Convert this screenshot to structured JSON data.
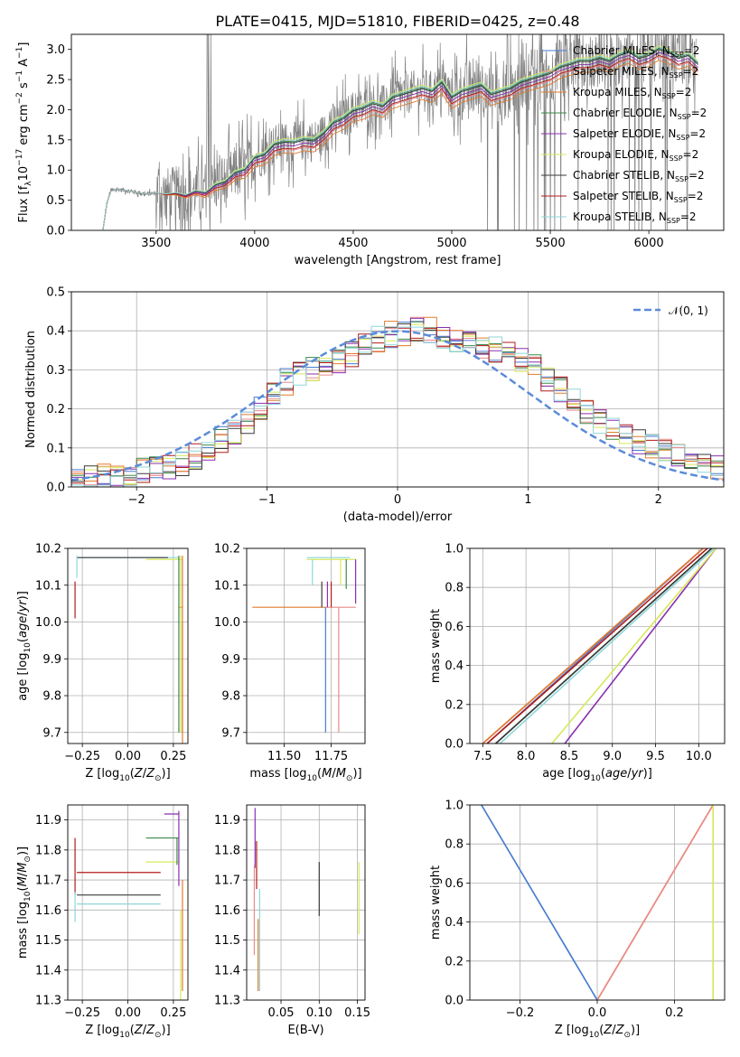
{
  "figure_title": "PLATE=0415, MJD=51810, FIBERID=0425, z=0.48",
  "models": [
    {
      "name": "Chabrier MILES, N$_{SSP}$=2",
      "label_main": "Chabrier MILES, N",
      "label_sub": "SSP",
      "label_tail": "=2",
      "color": "#4a7bd0"
    },
    {
      "name": "Salpeter MILES, N$_{SSP}$=2",
      "label_main": "Salpeter MILES, N",
      "label_sub": "SSP",
      "label_tail": "=2",
      "color": "#e98a8a"
    },
    {
      "name": "Kroupa MILES, N$_{SSP}$=2",
      "label_main": "Kroupa MILES, N",
      "label_sub": "SSP",
      "label_tail": "=2",
      "color": "#e07b2e"
    },
    {
      "name": "Chabrier ELODIE, N$_{SSP}$=2",
      "label_main": "Chabrier ELODIE, N",
      "label_sub": "SSP",
      "label_tail": "=2",
      "color": "#3c8a4a"
    },
    {
      "name": "Salpeter ELODIE, N$_{SSP}$=2",
      "label_main": "Salpeter ELODIE, N",
      "label_sub": "SSP",
      "label_tail": "=2",
      "color": "#8a2fb0"
    },
    {
      "name": "Kroupa ELODIE, N$_{SSP}$=2",
      "label_main": "Kroupa ELODIE, N",
      "label_sub": "SSP",
      "label_tail": "=2",
      "color": "#d7e85a"
    },
    {
      "name": "Chabrier STELIB, N$_{SSP}$=2",
      "label_main": "Chabrier STELIB, N",
      "label_sub": "SSP",
      "label_tail": "=2",
      "color": "#3a3a3a"
    },
    {
      "name": "Salpeter STELIB, N$_{SSP}$=2",
      "label_main": "Salpeter STELIB, N",
      "label_sub": "SSP",
      "label_tail": "=2",
      "color": "#b01c1c"
    },
    {
      "name": "Kroupa STELIB, N$_{SSP}$=2",
      "label_main": "Kroupa STELIB, N",
      "label_sub": "SSP",
      "label_tail": "=2",
      "color": "#8fd6da"
    }
  ],
  "chart_data": [
    {
      "id": "spectrum",
      "type": "line",
      "title": "PLATE=0415, MJD=51810, FIBERID=0425, z=0.48",
      "xlabel": "wavelength [Angstrom, rest frame]",
      "ylabel": "Flux [f_λ 10^-17 erg cm^-2 s^-1 A^-1]",
      "xlim": [
        3070,
        6380
      ],
      "ylim": [
        0,
        3.25
      ],
      "xticks": [
        3500,
        4000,
        4500,
        5000,
        5500,
        6000
      ],
      "yticks": [
        0.0,
        0.5,
        1.0,
        1.5,
        2.0,
        2.5,
        3.0
      ],
      "grid": false,
      "legend": "top-right",
      "data_series": {
        "name": "data",
        "color": "#808080"
      },
      "model_continuum": {
        "x": [
          3200,
          3230,
          3250,
          3270,
          3300,
          3350,
          3400,
          3450,
          3500,
          3550,
          3600,
          3650,
          3700,
          3750,
          3800,
          3850,
          3900,
          3950,
          4000,
          4050,
          4100,
          4150,
          4200,
          4250,
          4300,
          4350,
          4400,
          4450,
          4500,
          4550,
          4600,
          4650,
          4700,
          4750,
          4800,
          4850,
          4900,
          4950,
          5000,
          5050,
          5100,
          5150,
          5200,
          5250,
          5300,
          5350,
          5400,
          5450,
          5500,
          5550,
          5600,
          5650,
          5700,
          5750,
          5800,
          5850,
          5900,
          5950,
          6000,
          6050,
          6100,
          6150,
          6200,
          6250
        ],
        "y": [
          0.0,
          0.0,
          0.45,
          0.65,
          0.68,
          0.66,
          0.63,
          0.6,
          0.62,
          0.6,
          0.62,
          0.58,
          0.65,
          0.62,
          0.75,
          0.8,
          0.95,
          1.0,
          1.2,
          1.25,
          1.42,
          1.46,
          1.45,
          1.5,
          1.48,
          1.6,
          1.78,
          1.85,
          1.98,
          2.02,
          2.1,
          2.05,
          2.2,
          2.25,
          2.3,
          2.35,
          2.3,
          2.45,
          2.2,
          2.3,
          2.35,
          2.4,
          2.25,
          2.3,
          2.35,
          2.45,
          2.5,
          2.55,
          2.6,
          2.7,
          2.75,
          2.8,
          2.8,
          2.85,
          2.8,
          2.9,
          2.95,
          2.85,
          2.9,
          3.0,
          2.95,
          2.85,
          2.9,
          2.75
        ]
      }
    },
    {
      "id": "residuals",
      "type": "line",
      "xlabel": "(data-model)/error",
      "ylabel": "Normed distribution",
      "xlim": [
        -2.5,
        2.5
      ],
      "ylim": [
        0.0,
        0.5
      ],
      "xticks": [
        -2,
        -1,
        0,
        1,
        2
      ],
      "yticks": [
        0.0,
        0.1,
        0.2,
        0.3,
        0.4,
        0.5
      ],
      "grid": true,
      "legend": "top-right",
      "gaussian_label": "𝒩(0, 1)",
      "gaussian": {
        "mean": 0,
        "sigma": 1,
        "color": "#5b8bd9"
      },
      "histogram_bin_edges": [
        -2.5,
        -2.4,
        -2.3,
        -2.2,
        -2.1,
        -2.0,
        -1.9,
        -1.8,
        -1.7,
        -1.6,
        -1.5,
        -1.4,
        -1.3,
        -1.2,
        -1.1,
        -1.0,
        -0.9,
        -0.8,
        -0.7,
        -0.6,
        -0.5,
        -0.4,
        -0.3,
        -0.2,
        -0.1,
        0.0,
        0.1,
        0.2,
        0.3,
        0.4,
        0.5,
        0.6,
        0.7,
        0.8,
        0.9,
        1.0,
        1.1,
        1.2,
        1.3,
        1.4,
        1.5,
        1.6,
        1.7,
        1.8,
        1.9,
        2.0,
        2.1,
        2.2,
        2.3,
        2.4,
        2.5
      ],
      "histogram_base": [
        0.02,
        0.02,
        0.03,
        0.03,
        0.03,
        0.04,
        0.05,
        0.05,
        0.06,
        0.08,
        0.1,
        0.12,
        0.14,
        0.17,
        0.2,
        0.24,
        0.27,
        0.29,
        0.3,
        0.31,
        0.32,
        0.34,
        0.36,
        0.38,
        0.39,
        0.39,
        0.4,
        0.4,
        0.39,
        0.38,
        0.37,
        0.36,
        0.35,
        0.35,
        0.33,
        0.31,
        0.28,
        0.25,
        0.22,
        0.19,
        0.17,
        0.15,
        0.13,
        0.12,
        0.1,
        0.09,
        0.08,
        0.07,
        0.06,
        0.05
      ]
    },
    {
      "id": "age_vs_Z",
      "type": "line",
      "xlabel": "Z [log10(Z/Z⊙)]",
      "ylabel": "age [log10(age/yr)]",
      "xlim": [
        -0.33,
        0.33
      ],
      "ylim": [
        9.67,
        10.2
      ],
      "xticks": [
        -0.25,
        0.0,
        0.25
      ],
      "yticks": [
        9.7,
        9.8,
        9.9,
        10.0,
        10.1,
        10.2
      ],
      "grid": true,
      "segments": [
        {
          "model": 8,
          "x0": -0.28,
          "x1": 0.28,
          "y": 10.175,
          "err": 0.01
        },
        {
          "model": 6,
          "x0": -0.28,
          "x1": 0.22,
          "y": 10.175,
          "err": 0.01
        },
        {
          "model": 5,
          "x0": 0.1,
          "x1": 0.3,
          "y": 10.17,
          "err": 0.01
        },
        {
          "model": 2,
          "x0": 0.28,
          "x1": 0.3,
          "y": 10.04,
          "err": 0.02
        },
        {
          "model": 7,
          "x0": -0.29,
          "x1": -0.29,
          "y": 10.06,
          "err": 0.05
        },
        {
          "model": 2,
          "x0": 0.3,
          "x1": 0.3,
          "y": 9.7,
          "err": 0.3
        }
      ]
    },
    {
      "id": "age_vs_mass",
      "type": "line",
      "xlabel": "mass [log10(M/M⊙)]",
      "ylabel": "",
      "xlim": [
        11.3,
        11.93
      ],
      "ylim": [
        9.67,
        10.2
      ],
      "xticks": [
        11.5,
        11.75
      ],
      "yticks": [
        9.7,
        9.8,
        9.9,
        10.0,
        10.1,
        10.2
      ],
      "grid": true,
      "segments": [
        {
          "model": 8,
          "x0": 11.62,
          "x1": 11.85,
          "y": 10.175
        },
        {
          "model": 5,
          "x0": 11.62,
          "x1": 11.88,
          "y": 10.17
        },
        {
          "model": 2,
          "x0": 11.33,
          "x1": 11.72,
          "y": 10.04
        },
        {
          "model": 1,
          "x0": 11.72,
          "x1": 11.88,
          "y": 10.04
        },
        {
          "model": 0,
          "x0": 11.72,
          "x1": 11.72,
          "y": 9.7
        },
        {
          "model": 1,
          "x0": 11.79,
          "x1": 11.79,
          "y": 9.7
        }
      ]
    },
    {
      "id": "massweight_vs_age",
      "type": "line",
      "xlabel": "age [log10(age/yr)]",
      "ylabel": "mass weight",
      "xlim": [
        7.35,
        10.3
      ],
      "ylim": [
        0.0,
        1.0
      ],
      "xticks": [
        7.5,
        8.0,
        8.5,
        9.0,
        9.5,
        10.0
      ],
      "yticks": [
        0.0,
        0.2,
        0.4,
        0.6,
        0.8,
        1.0
      ],
      "grid": true,
      "lines": [
        {
          "model": 0,
          "x0": 7.55,
          "x1": 10.05
        },
        {
          "model": 1,
          "x0": 7.5,
          "x1": 10.05
        },
        {
          "model": 2,
          "x0": 7.5,
          "x1": 10.05
        },
        {
          "model": 3,
          "x0": 7.65,
          "x1": 10.15
        },
        {
          "model": 4,
          "x0": 8.45,
          "x1": 10.2
        },
        {
          "model": 5,
          "x0": 8.3,
          "x1": 10.2
        },
        {
          "model": 6,
          "x0": 7.65,
          "x1": 10.15
        },
        {
          "model": 7,
          "x0": 7.55,
          "x1": 10.1
        },
        {
          "model": 8,
          "x0": 7.7,
          "x1": 10.18
        }
      ]
    },
    {
      "id": "mass_vs_Z",
      "type": "line",
      "xlabel": "Z [log10(Z/Z⊙)]",
      "ylabel": "mass [log10(M/M⊙)]",
      "xlim": [
        -0.33,
        0.33
      ],
      "ylim": [
        11.3,
        11.95
      ],
      "xticks": [
        -0.25,
        0.0,
        0.25
      ],
      "yticks": [
        11.3,
        11.4,
        11.5,
        11.6,
        11.7,
        11.8,
        11.9
      ],
      "grid": true,
      "segments": [
        {
          "model": 4,
          "x0": 0.2,
          "x1": 0.28,
          "y": 11.92
        },
        {
          "model": 3,
          "x0": 0.1,
          "x1": 0.28,
          "y": 11.84
        },
        {
          "model": 5,
          "x0": 0.1,
          "x1": 0.28,
          "y": 11.76
        },
        {
          "model": 7,
          "x0": -0.28,
          "x1": 0.18,
          "y": 11.725
        },
        {
          "model": 6,
          "x0": -0.28,
          "x1": 0.18,
          "y": 11.65
        },
        {
          "model": 8,
          "x0": -0.28,
          "x1": 0.18,
          "y": 11.62
        }
      ]
    },
    {
      "id": "mass_vs_EBV",
      "type": "line",
      "xlabel": "E(B-V)",
      "ylabel": "",
      "xlim": [
        0.005,
        0.16
      ],
      "ylim": [
        11.3,
        11.95
      ],
      "xticks": [
        0.05,
        0.1,
        0.15
      ],
      "yticks": [
        11.3,
        11.4,
        11.5,
        11.6,
        11.7,
        11.8,
        11.9
      ],
      "grid": true,
      "points": [
        {
          "model": 4,
          "x": 0.016,
          "y": 11.84,
          "err": 0.1
        },
        {
          "model": 1,
          "x": 0.015,
          "y": 11.6,
          "err": 0.15
        },
        {
          "model": 7,
          "x": 0.018,
          "y": 11.75,
          "err": 0.08
        },
        {
          "model": 2,
          "x": 0.02,
          "y": 11.45,
          "err": 0.12
        },
        {
          "model": 8,
          "x": 0.022,
          "y": 11.5,
          "err": 0.17
        },
        {
          "model": 6,
          "x": 0.1,
          "y": 11.67,
          "err": 0.09
        },
        {
          "model": 5,
          "x": 0.152,
          "y": 11.64,
          "err": 0.12
        }
      ]
    },
    {
      "id": "massweight_vs_Z",
      "type": "line",
      "xlabel": "Z [log10(Z/Z⊙)]",
      "ylabel": "mass weight",
      "xlim": [
        -0.33,
        0.33
      ],
      "ylim": [
        0.0,
        1.0
      ],
      "xticks": [
        -0.2,
        0.0,
        0.2
      ],
      "yticks": [
        0.0,
        0.2,
        0.4,
        0.6,
        0.8,
        1.0
      ],
      "grid": true,
      "lines": [
        {
          "model": 8,
          "x0": -0.3,
          "y0": 1.0,
          "x1": 0.0,
          "y1": 0.0
        },
        {
          "model": 0,
          "x0": -0.3,
          "y0": 1.0,
          "x1": 0.0,
          "y1": 0.0
        },
        {
          "model": 2,
          "x0": 0.0,
          "y0": 0.0,
          "x1": 0.3,
          "y1": 1.0
        },
        {
          "model": 1,
          "x0": 0.0,
          "y0": 0.0,
          "x1": 0.3,
          "y1": 1.0
        },
        {
          "model": 5,
          "x0": 0.3,
          "y0": 0.0,
          "x1": 0.3,
          "y1": 1.0
        }
      ]
    }
  ]
}
